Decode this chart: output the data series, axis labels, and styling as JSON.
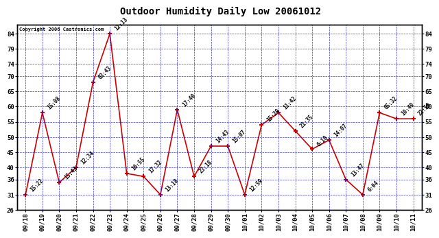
{
  "title": "Outdoor Humidity Daily Low 20061012",
  "copyright": "Copyright 2006 Castronics.com",
  "dates": [
    "09/18",
    "09/19",
    "09/20",
    "09/21",
    "09/22",
    "09/23",
    "09/24",
    "09/25",
    "09/26",
    "09/27",
    "09/28",
    "09/29",
    "09/30",
    "10/01",
    "10/02",
    "10/03",
    "10/04",
    "10/05",
    "10/06",
    "10/07",
    "10/08",
    "10/09",
    "10/10",
    "10/11"
  ],
  "values": [
    31,
    58,
    35,
    40,
    68,
    84,
    38,
    37,
    31,
    59,
    37,
    47,
    47,
    31,
    54,
    58,
    52,
    46,
    49,
    36,
    31,
    58,
    56,
    56
  ],
  "labels": [
    "15:22",
    "15:08",
    "15:43",
    "12:34",
    "03:43",
    "12:13",
    "16:55",
    "17:32",
    "13:18",
    "17:40",
    "23:18",
    "14:43",
    "15:07",
    "12:59",
    "15:29",
    "11:42",
    "21:35",
    "6:10",
    "14:07",
    "13:47",
    "6:04",
    "05:32",
    "10:49",
    "22:59"
  ],
  "line_color": "#cc0000",
  "marker_color": "#cc0000",
  "grid_color": "#0000cc",
  "background_color": "#ffffff",
  "title_color": "#000000",
  "label_color": "#000000",
  "ylim": [
    26,
    87
  ],
  "yticks": [
    26,
    31,
    36,
    40,
    45,
    50,
    55,
    60,
    65,
    70,
    74,
    79,
    84
  ],
  "title_fontsize": 10,
  "label_fontsize": 5.5
}
